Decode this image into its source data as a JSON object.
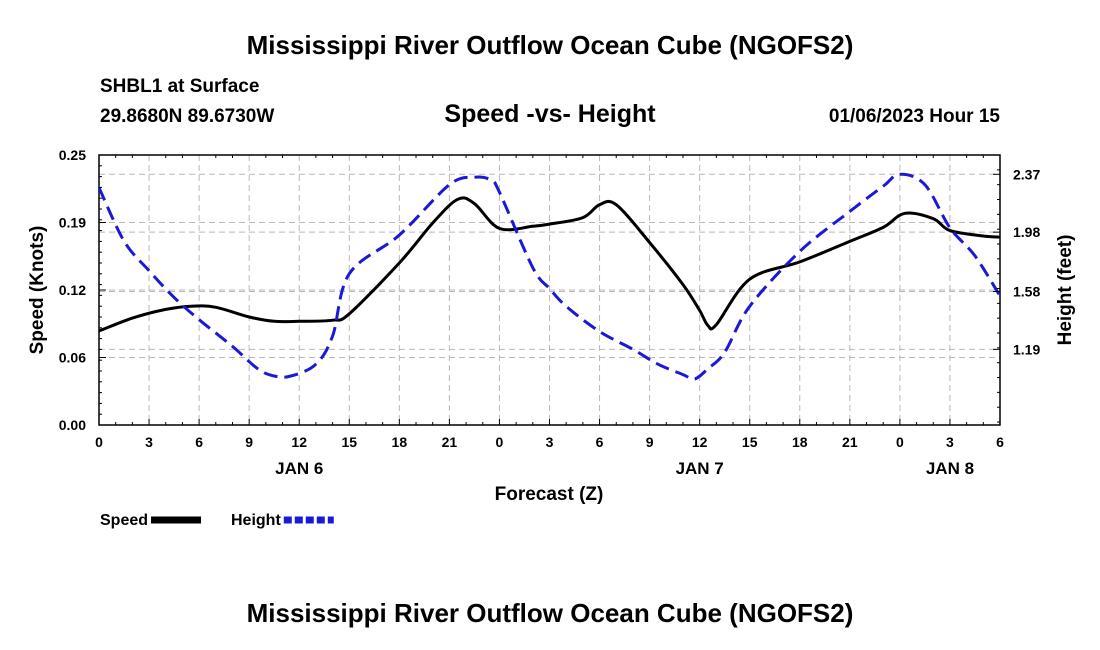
{
  "page": {
    "title": "Mississippi River Outflow Ocean Cube (NGOFS2)",
    "title_repeat": "Mississippi River Outflow Ocean Cube (NGOFS2)",
    "station": "SHBL1 at Surface",
    "coords": "29.8680N  89.6730W",
    "datetime": "01/06/2023 Hour 15"
  },
  "chart_data": {
    "type": "line",
    "title": "Speed -vs- Height",
    "xlabel": "Forecast (Z)",
    "ylabel": "Speed (Knots)",
    "y2label": "Height (feet)",
    "x_range_hours": [
      0,
      54
    ],
    "x_ticks": [
      {
        "h": 0,
        "label": "0"
      },
      {
        "h": 3,
        "label": "3"
      },
      {
        "h": 6,
        "label": "6"
      },
      {
        "h": 9,
        "label": "9"
      },
      {
        "h": 12,
        "label": "12"
      },
      {
        "h": 15,
        "label": "15"
      },
      {
        "h": 18,
        "label": "18"
      },
      {
        "h": 21,
        "label": "21"
      },
      {
        "h": 24,
        "label": "0"
      },
      {
        "h": 27,
        "label": "3"
      },
      {
        "h": 30,
        "label": "6"
      },
      {
        "h": 33,
        "label": "9"
      },
      {
        "h": 36,
        "label": "12"
      },
      {
        "h": 39,
        "label": "15"
      },
      {
        "h": 42,
        "label": "18"
      },
      {
        "h": 45,
        "label": "21"
      },
      {
        "h": 48,
        "label": "0"
      },
      {
        "h": 51,
        "label": "3"
      },
      {
        "h": 54,
        "label": "6"
      }
    ],
    "day_labels": [
      {
        "h": 12,
        "label": "JAN 6"
      },
      {
        "h": 36,
        "label": "JAN 7"
      },
      {
        "h": 51,
        "label": "JAN 8"
      }
    ],
    "ylim": [
      0,
      0.25
    ],
    "y_ticks": [
      {
        "v": 0.0,
        "label": "0.00"
      },
      {
        "v": 0.0625,
        "label": "0.06"
      },
      {
        "v": 0.125,
        "label": "0.12"
      },
      {
        "v": 0.1875,
        "label": "0.19"
      },
      {
        "v": 0.25,
        "label": "0.25"
      }
    ],
    "y2lim": [
      0.68,
      2.5
    ],
    "y2_ticks": [
      {
        "v": 1.19,
        "label": "1.19"
      },
      {
        "v": 1.58,
        "label": "1.58"
      },
      {
        "v": 1.98,
        "label": "1.98"
      },
      {
        "v": 2.37,
        "label": "2.37"
      }
    ],
    "series": [
      {
        "name": "Speed",
        "axis": "left",
        "color": "#000000",
        "dash": "",
        "x": [
          0,
          2,
          4,
          5.5,
          7,
          9,
          10.5,
          12,
          14,
          15,
          18,
          20,
          21.5,
          22.5,
          24,
          26,
          27,
          29,
          30,
          31,
          33,
          35,
          36,
          36.5,
          37,
          39,
          42,
          45,
          47,
          48.3,
          50,
          51,
          53,
          54
        ],
        "y": [
          0.087,
          0.099,
          0.107,
          0.11,
          0.109,
          0.1,
          0.096,
          0.096,
          0.097,
          0.103,
          0.15,
          0.187,
          0.209,
          0.205,
          0.182,
          0.184,
          0.186,
          0.192,
          0.204,
          0.204,
          0.169,
          0.13,
          0.106,
          0.092,
          0.093,
          0.135,
          0.151,
          0.17,
          0.183,
          0.196,
          0.191,
          0.18,
          0.175,
          0.174
        ]
      },
      {
        "name": "Height",
        "axis": "right",
        "color": "#1a1ad6",
        "dash": "14,7",
        "x": [
          0,
          1.5,
          3,
          4.5,
          6,
          8,
          9.5,
          10.5,
          11.5,
          13,
          14,
          15,
          18,
          21,
          22.5,
          23.5,
          24,
          26,
          27,
          28,
          30,
          32,
          33.5,
          35,
          35.7,
          36.5,
          37.5,
          39,
          42,
          45,
          47,
          48,
          49.5,
          51,
          52.5,
          54
        ],
        "y": [
          2.28,
          1.92,
          1.72,
          1.54,
          1.39,
          1.21,
          1.06,
          1.01,
          1.01,
          1.09,
          1.28,
          1.7,
          1.96,
          2.3,
          2.35,
          2.33,
          2.25,
          1.74,
          1.6,
          1.48,
          1.31,
          1.19,
          1.09,
          1.02,
          0.99,
          1.06,
          1.17,
          1.48,
          1.85,
          2.12,
          2.29,
          2.37,
          2.3,
          2.01,
          1.82,
          1.55
        ]
      }
    ],
    "legend": [
      {
        "label": "Speed",
        "color": "#000000",
        "dash": ""
      },
      {
        "label": "Height",
        "color": "#1a1ad6",
        "dash": "8,3"
      }
    ],
    "grid": true
  }
}
